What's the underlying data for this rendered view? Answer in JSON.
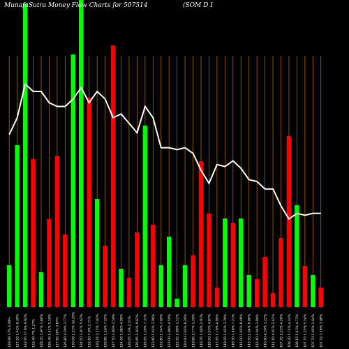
{
  "chart_data": {
    "type": "bar",
    "title_left": "MunafaSutra  Money Flow  Charts for 507514",
    "title_right": "(SOM D                    I",
    "colors": {
      "background": "#000000",
      "up": "#00ff00",
      "down": "#ff0000",
      "grid": "#b36b00",
      "line": "#ffffff",
      "text": "#ffffff"
    },
    "grid": true,
    "categories": [
      "129.99  17% 4.49%",
      "127.50  1.42% 9.39%",
      "132.95  17.9% 9.92%",
      "133.40  7% 1.27%",
      "128.45  2.97% 1.80%",
      "126.45  1.41% 5.19%",
      "127.85  16% 3.87%",
      "126.80  4.29% 3.77%",
      "130.00  1.23% 12.29%",
      "134.50  1.97% 5.62%",
      "132.60  7.9% 2.71%",
      "130.25  2.15% 7.02%",
      "128.85  1.16% 7.25%",
      "127.50  2.93% 3.59%",
      "124.00  1.08% 4.99%",
      "128.65  5.3% 2.51%",
      "126.65  1.03% 9.63%",
      "126.65  1.29% 7.31%",
      "123.60  1.62% 3.06%",
      "122.80  1.54% 3.69%",
      "123.00  2.09% 4.59%",
      "122.65  2.99% 1.12%",
      "120.00  3.65% 6.20%",
      "119.85  2.77% 1.20%",
      "119.35  1.66% 2.91%",
      "118.50  2.53% 4.87%",
      "117.65  1.79% 4.09%",
      "119.00  1.62% 3.39%",
      "118.50  1.48% 7.21%",
      "115.00  1.65% 8.48%",
      "113.50  2.04% 6.06%",
      "112.60  1.94% 3.89%",
      "116.90  4.30% 3.22%",
      "111.50  4.97% 2.61%",
      "107.25  2.23% 4.26%",
      "108.30  1.74% 4.44%",
      "108.15  1.43% 4.73%",
      "107.75  1.25% 5.54%",
      "107.70  1.92% 1.64%",
      "107.72  3.18% 3.08%"
    ],
    "bar_values": [
      60,
      232,
      435,
      212,
      50,
      126,
      217,
      104,
      362,
      440,
      300,
      155,
      88,
      375,
      55,
      42,
      107,
      260,
      118,
      60,
      101,
      12,
      60,
      74,
      209,
      134,
      28,
      127,
      121,
      127,
      46,
      40,
      72,
      20,
      99,
      245,
      146,
      59,
      46,
      28
    ],
    "bar_direction": [
      "up",
      "up",
      "up",
      "down",
      "up",
      "down",
      "down",
      "down",
      "up",
      "up",
      "down",
      "up",
      "down",
      "down",
      "up",
      "down",
      "down",
      "up",
      "down",
      "up",
      "up",
      "up",
      "up",
      "down",
      "down",
      "down",
      "down",
      "up",
      "down",
      "up",
      "up",
      "down",
      "down",
      "down",
      "down",
      "down",
      "up",
      "down",
      "up",
      "down"
    ],
    "line_values": [
      132,
      136.5,
      145.5,
      143.5,
      143.5,
      140.5,
      139.5,
      139.5,
      141.5,
      144.5,
      140.5,
      143.5,
      141.5,
      136.5,
      137.5,
      135,
      132.5,
      139.5,
      136.5,
      128.5,
      128.5,
      128,
      128.5,
      127,
      122.5,
      119,
      124,
      123.5,
      125,
      123,
      120,
      119.5,
      117.5,
      117.5,
      113,
      109.5,
      111,
      110.5,
      111,
      111
    ],
    "line_range": [
      86,
      153
    ],
    "bar_range": [
      0,
      440
    ]
  }
}
